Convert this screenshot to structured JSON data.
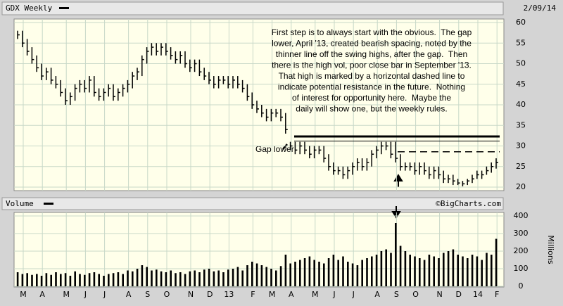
{
  "chart_data": {
    "type": "ohlc",
    "title": "GDX Weekly",
    "date": "2/09/14",
    "credit": "©BigCharts.com",
    "gap_label": "Gap lower",
    "annotation": [
      "First step is to always start with the obvious.  The gap",
      "lower, April '13, created bearish spacing, noted by the",
      "thinner line off the swing highs, after the gap.  Then",
      "there is the high vol, poor close bar in September '13.",
      "That high is marked by a horizontal dashed line to",
      "indicate potential resistance in the future.  Nothing",
      "of interest for opportunity here.  Maybe the",
      "daily will show one, but the weekly rules."
    ],
    "categories": [
      "M",
      null,
      null,
      null,
      "A",
      null,
      null,
      null,
      null,
      "M",
      null,
      null,
      null,
      "J",
      null,
      null,
      null,
      "J",
      null,
      null,
      null,
      null,
      "A",
      null,
      null,
      null,
      "S",
      null,
      null,
      null,
      "O",
      null,
      null,
      null,
      null,
      "N",
      null,
      null,
      null,
      "D",
      null,
      null,
      null,
      "13",
      null,
      null,
      null,
      null,
      "F",
      null,
      null,
      null,
      "M",
      null,
      null,
      null,
      "A",
      null,
      null,
      null,
      null,
      "M",
      null,
      null,
      null,
      "J",
      null,
      null,
      null,
      "J",
      null,
      null,
      null,
      null,
      "A",
      null,
      null,
      null,
      "S",
      null,
      null,
      null,
      "O",
      null,
      null,
      null,
      null,
      "N",
      null,
      null,
      null,
      "D",
      null,
      null,
      null,
      "14",
      null,
      null,
      null,
      "F",
      null
    ],
    "high": [
      58,
      58,
      56,
      54,
      52,
      50,
      49,
      49,
      47,
      46,
      44,
      43,
      45,
      46,
      46,
      47,
      47,
      44,
      44,
      45,
      45,
      44,
      45,
      46,
      48,
      49,
      52,
      54,
      55,
      55,
      55,
      55,
      54,
      53,
      53,
      53,
      51,
      51,
      51,
      49,
      48,
      47,
      47,
      47,
      47,
      47,
      47,
      46,
      45,
      43,
      41,
      40,
      39,
      39,
      39,
      39,
      38,
      31,
      31,
      31,
      31,
      30,
      30,
      30,
      30,
      28,
      26,
      25,
      25,
      25,
      26,
      27,
      27,
      27,
      29,
      30,
      31,
      31,
      31,
      31,
      28,
      26,
      26,
      26,
      26,
      26,
      25,
      25,
      25,
      24,
      23,
      23,
      22,
      21.5,
      22,
      23,
      24,
      24,
      25,
      26,
      27
    ],
    "low": [
      56,
      54,
      52,
      50,
      48,
      46,
      46,
      45,
      44,
      42,
      40,
      40,
      41,
      43,
      43,
      43,
      42,
      41,
      41,
      42,
      41,
      41,
      42,
      43,
      44,
      46,
      47,
      50,
      52,
      52,
      52,
      52,
      51,
      50,
      50,
      49,
      48,
      48,
      47,
      46,
      45,
      44,
      44,
      45,
      44,
      44,
      44,
      43,
      41,
      39,
      38,
      37,
      36,
      36,
      37,
      36,
      33,
      29,
      28,
      28,
      28,
      27,
      27,
      28,
      26,
      24,
      23,
      23,
      22,
      22,
      23,
      24,
      24,
      24,
      25,
      27,
      28,
      29,
      27,
      26,
      24,
      24,
      24,
      23,
      23,
      23,
      22,
      22,
      22,
      21,
      21,
      20.5,
      20.5,
      20.2,
      20.5,
      21,
      22,
      22,
      23,
      23.5,
      24.5
    ],
    "close": [
      57,
      55,
      53,
      51,
      49,
      47,
      48,
      46,
      45,
      43,
      41,
      42,
      44,
      45,
      44,
      46,
      43,
      42,
      43,
      44,
      42,
      43,
      44,
      45,
      47,
      48,
      51,
      53,
      54,
      53,
      54,
      53,
      52,
      51,
      52,
      50,
      49,
      50,
      48,
      47,
      46,
      45,
      46,
      46,
      45,
      46,
      45,
      44,
      42,
      40,
      39,
      38,
      37,
      38,
      38,
      37,
      34,
      30,
      29,
      30,
      29,
      28,
      29,
      29,
      27,
      25,
      24,
      24,
      23,
      24,
      25,
      26,
      25,
      26,
      28,
      29,
      30,
      30,
      28,
      27,
      25,
      25,
      25,
      24,
      25,
      24,
      23,
      24,
      23,
      22,
      22,
      21.5,
      21,
      20.8,
      21.5,
      22,
      23,
      23,
      24,
      25,
      26
    ],
    "color": "#000000",
    "ylim": [
      20,
      60
    ],
    "yticks": [
      20,
      25,
      30,
      35,
      40,
      45,
      50,
      55,
      60
    ],
    "grid": true,
    "hlines": [
      {
        "value": 32.3,
        "style": "solid"
      },
      {
        "value": 31.2,
        "style": "thin"
      },
      {
        "value": 28.6,
        "style": "dashed"
      }
    ],
    "volume": {
      "title": "Volume",
      "axis_label": "Millions",
      "values": [
        80,
        70,
        75,
        65,
        70,
        60,
        75,
        65,
        80,
        70,
        75,
        60,
        85,
        70,
        65,
        75,
        80,
        70,
        60,
        70,
        75,
        80,
        70,
        90,
        85,
        100,
        120,
        110,
        90,
        95,
        85,
        80,
        90,
        75,
        80,
        70,
        85,
        90,
        80,
        95,
        100,
        85,
        90,
        80,
        95,
        100,
        110,
        90,
        120,
        140,
        130,
        120,
        110,
        100,
        90,
        115,
        180,
        130,
        140,
        150,
        160,
        170,
        150,
        140,
        130,
        160,
        180,
        150,
        170,
        140,
        130,
        120,
        150,
        160,
        170,
        180,
        200,
        210,
        190,
        360,
        230,
        200,
        180,
        170,
        160,
        150,
        180,
        170,
        160,
        190,
        200,
        210,
        180,
        170,
        160,
        180,
        170,
        150,
        190,
        180,
        270
      ],
      "ylim": [
        0,
        400
      ],
      "yticks": [
        0,
        100,
        200,
        300,
        400
      ]
    }
  }
}
